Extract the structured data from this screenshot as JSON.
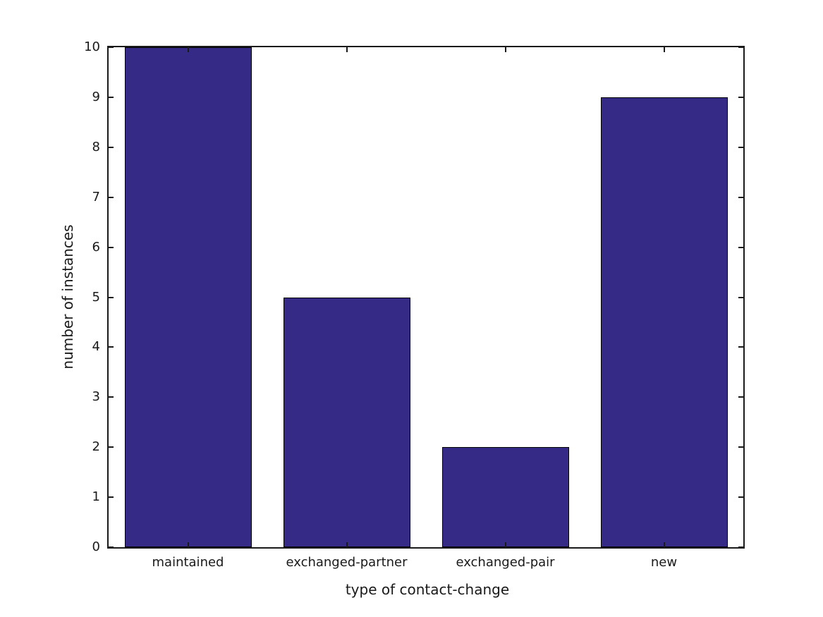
{
  "chart_data": {
    "type": "bar",
    "categories": [
      "maintained",
      "exchanged-partner",
      "exchanged-pair",
      "new"
    ],
    "values": [
      10,
      5,
      2,
      9
    ],
    "title": "",
    "xlabel": "type of contact-change",
    "ylabel": "number of instances",
    "ylim": [
      0,
      10
    ],
    "yticks": [
      0,
      1,
      2,
      3,
      4,
      5,
      6,
      7,
      8,
      9,
      10
    ],
    "grid": false,
    "legend": "none",
    "bar_width_fraction": 0.8,
    "box": true,
    "ticks_inward_all_sides": true,
    "colors": {
      "bar_fill": "#352B87",
      "bar_edge": "#000000",
      "axis": "#1a1a1a",
      "text": "#1a1a1a",
      "background": "#ffffff"
    }
  }
}
